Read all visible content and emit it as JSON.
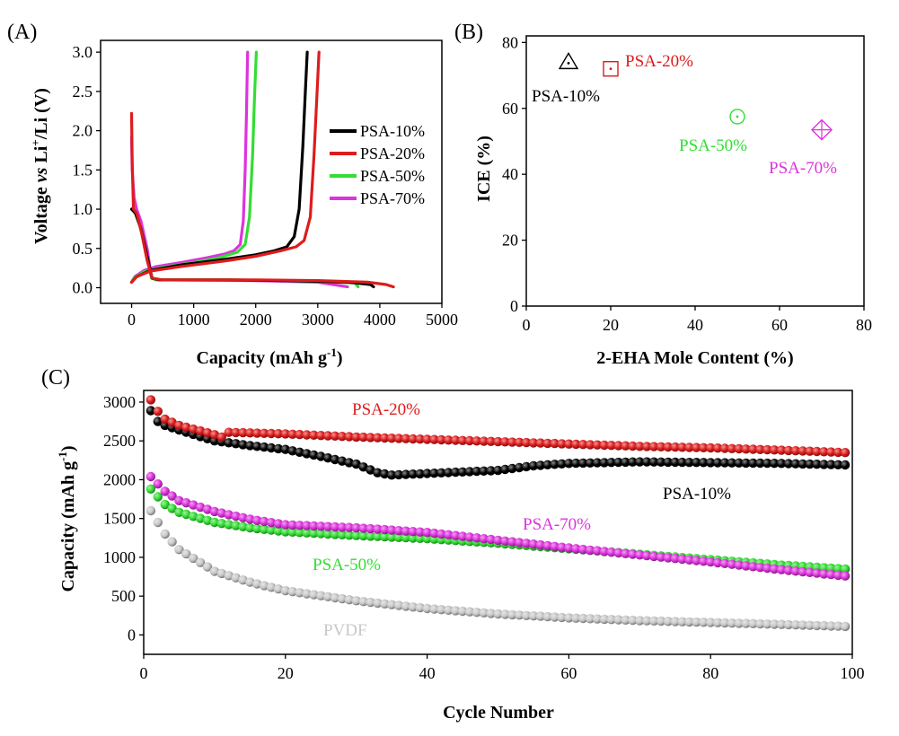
{
  "panels": {
    "a": "(A)",
    "b": "(B)",
    "c": "(C)"
  },
  "colors": {
    "PSA-10%": "#000000",
    "PSA-20%": "#dd1c1c",
    "PSA-50%": "#33dd33",
    "PSA-70%": "#dd33dd",
    "PVDF": "#c8c8c8"
  },
  "chart_data": [
    {
      "id": "A",
      "type": "line",
      "title": "",
      "xlabel": "Capacity (mAh g",
      "xlabel_sup": "-1",
      "xlabel_end": ")",
      "ylabel_parts": [
        "Voltage ",
        "vs",
        " Li",
        "+",
        "/Li (V)"
      ],
      "xlim": [
        -500,
        5000
      ],
      "ylim": [
        -0.2,
        3.15
      ],
      "xticks": [
        0,
        1000,
        2000,
        3000,
        4000,
        5000
      ],
      "yticks": [
        0.0,
        0.5,
        1.0,
        1.5,
        2.0,
        2.5,
        3.0
      ],
      "legend": [
        "PSA-10%",
        "PSA-20%",
        "PSA-50%",
        "PSA-70%"
      ],
      "series": [
        {
          "name": "PSA-70%",
          "discharge": [
            [
              0,
              1.92
            ],
            [
              10,
              1.5
            ],
            [
              40,
              1.15
            ],
            [
              80,
              1.0
            ],
            [
              150,
              0.85
            ],
            [
              250,
              0.5
            ],
            [
              320,
              0.13
            ],
            [
              400,
              0.1
            ],
            [
              1000,
              0.095
            ],
            [
              2000,
              0.09
            ],
            [
              3000,
              0.07
            ],
            [
              3480,
              0.01
            ]
          ],
          "charge": [
            [
              0,
              0.07
            ],
            [
              50,
              0.14
            ],
            [
              200,
              0.22
            ],
            [
              400,
              0.27
            ],
            [
              800,
              0.32
            ],
            [
              1200,
              0.38
            ],
            [
              1500,
              0.43
            ],
            [
              1650,
              0.47
            ],
            [
              1750,
              0.55
            ],
            [
              1800,
              0.85
            ],
            [
              1830,
              1.5
            ],
            [
              1850,
              2.2
            ],
            [
              1870,
              3.0
            ]
          ]
        },
        {
          "name": "PSA-50%",
          "discharge": [
            [
              0,
              1.0
            ],
            [
              60,
              0.95
            ],
            [
              150,
              0.75
            ],
            [
              250,
              0.4
            ],
            [
              320,
              0.12
            ],
            [
              400,
              0.1
            ],
            [
              1500,
              0.1
            ],
            [
              2500,
              0.09
            ],
            [
              3600,
              0.06
            ],
            [
              3650,
              0.01
            ]
          ],
          "charge": [
            [
              0,
              0.07
            ],
            [
              50,
              0.13
            ],
            [
              200,
              0.2
            ],
            [
              500,
              0.26
            ],
            [
              1000,
              0.32
            ],
            [
              1400,
              0.38
            ],
            [
              1700,
              0.45
            ],
            [
              1830,
              0.55
            ],
            [
              1900,
              0.9
            ],
            [
              1950,
              1.7
            ],
            [
              1980,
              2.4
            ],
            [
              2010,
              3.0
            ]
          ]
        },
        {
          "name": "PSA-10%",
          "discharge": [
            [
              0,
              1.0
            ],
            [
              60,
              0.95
            ],
            [
              150,
              0.75
            ],
            [
              250,
              0.4
            ],
            [
              330,
              0.12
            ],
            [
              450,
              0.1
            ],
            [
              1500,
              0.1
            ],
            [
              2500,
              0.09
            ],
            [
              3500,
              0.07
            ],
            [
              3850,
              0.04
            ],
            [
              3900,
              0.01
            ]
          ],
          "charge": [
            [
              0,
              0.07
            ],
            [
              80,
              0.14
            ],
            [
              300,
              0.22
            ],
            [
              800,
              0.29
            ],
            [
              1500,
              0.36
            ],
            [
              2000,
              0.42
            ],
            [
              2300,
              0.47
            ],
            [
              2500,
              0.52
            ],
            [
              2620,
              0.65
            ],
            [
              2700,
              1.0
            ],
            [
              2760,
              1.8
            ],
            [
              2800,
              2.5
            ],
            [
              2830,
              3.0
            ]
          ]
        },
        {
          "name": "PSA-20%",
          "discharge": [
            [
              0,
              2.22
            ],
            [
              10,
              1.6
            ],
            [
              30,
              1.0
            ],
            [
              80,
              0.95
            ],
            [
              160,
              0.7
            ],
            [
              250,
              0.35
            ],
            [
              330,
              0.12
            ],
            [
              500,
              0.1
            ],
            [
              2000,
              0.1
            ],
            [
              3000,
              0.09
            ],
            [
              3800,
              0.07
            ],
            [
              4100,
              0.04
            ],
            [
              4220,
              0.01
            ]
          ],
          "charge": [
            [
              0,
              0.07
            ],
            [
              80,
              0.14
            ],
            [
              300,
              0.21
            ],
            [
              800,
              0.27
            ],
            [
              1500,
              0.34
            ],
            [
              2000,
              0.4
            ],
            [
              2400,
              0.47
            ],
            [
              2650,
              0.52
            ],
            [
              2780,
              0.6
            ],
            [
              2880,
              0.9
            ],
            [
              2940,
              1.7
            ],
            [
              2990,
              2.5
            ],
            [
              3020,
              3.0
            ]
          ]
        }
      ]
    },
    {
      "id": "B",
      "type": "scatter",
      "title": "",
      "xlabel": "2-EHA Mole Content (%)",
      "ylabel": "ICE (%)",
      "xlim": [
        0,
        80
      ],
      "ylim": [
        0,
        82
      ],
      "xticks": [
        0,
        20,
        40,
        60,
        80
      ],
      "yticks": [
        0,
        20,
        40,
        60,
        80
      ],
      "points": [
        {
          "name": "PSA-10%",
          "x": 10,
          "y": 74,
          "marker": "triangle-dot"
        },
        {
          "name": "PSA-20%",
          "x": 20,
          "y": 72,
          "marker": "square-dot"
        },
        {
          "name": "PSA-50%",
          "x": 50,
          "y": 57.5,
          "marker": "circle-dot"
        },
        {
          "name": "PSA-70%",
          "x": 70,
          "y": 53.5,
          "marker": "diamond-plus"
        }
      ]
    },
    {
      "id": "C",
      "type": "scatter",
      "title": "",
      "xlabel": "Cycle Number",
      "ylabel": "Capacity (mAh g",
      "ylabel_sup": "-1",
      "ylabel_end": ")",
      "xlim": [
        0,
        100
      ],
      "ylim": [
        -250,
        3150
      ],
      "xticks": [
        0,
        20,
        40,
        60,
        80,
        100
      ],
      "yticks": [
        0,
        500,
        1000,
        1500,
        2000,
        2500,
        3000
      ],
      "n_cycles": 99,
      "series": [
        {
          "name": "PVDF",
          "anchors": [
            [
              1,
              1600
            ],
            [
              3,
              1300
            ],
            [
              5,
              1100
            ],
            [
              10,
              820
            ],
            [
              15,
              680
            ],
            [
              20,
              570
            ],
            [
              30,
              440
            ],
            [
              40,
              340
            ],
            [
              50,
              270
            ],
            [
              60,
              220
            ],
            [
              70,
              185
            ],
            [
              80,
              160
            ],
            [
              90,
              135
            ],
            [
              99,
              110
            ]
          ]
        },
        {
          "name": "PSA-50%",
          "anchors": [
            [
              1,
              1880
            ],
            [
              3,
              1680
            ],
            [
              5,
              1580
            ],
            [
              10,
              1450
            ],
            [
              15,
              1380
            ],
            [
              20,
              1330
            ],
            [
              30,
              1280
            ],
            [
              40,
              1240
            ],
            [
              50,
              1180
            ],
            [
              60,
              1110
            ],
            [
              70,
              1040
            ],
            [
              80,
              970
            ],
            [
              90,
              900
            ],
            [
              99,
              850
            ]
          ]
        },
        {
          "name": "PSA-70%",
          "anchors": [
            [
              1,
              2040
            ],
            [
              3,
              1850
            ],
            [
              5,
              1730
            ],
            [
              10,
              1590
            ],
            [
              15,
              1490
            ],
            [
              20,
              1420
            ],
            [
              30,
              1380
            ],
            [
              40,
              1320
            ],
            [
              50,
              1220
            ],
            [
              60,
              1120
            ],
            [
              70,
              1030
            ],
            [
              80,
              940
            ],
            [
              90,
              840
            ],
            [
              99,
              760
            ]
          ]
        },
        {
          "name": "PSA-10%",
          "anchors": [
            [
              1,
              2890
            ],
            [
              2,
              2750
            ],
            [
              3,
              2700
            ],
            [
              5,
              2640
            ],
            [
              10,
              2500
            ],
            [
              15,
              2440
            ],
            [
              20,
              2390
            ],
            [
              25,
              2300
            ],
            [
              30,
              2200
            ],
            [
              33,
              2090
            ],
            [
              35,
              2060
            ],
            [
              40,
              2080
            ],
            [
              45,
              2100
            ],
            [
              50,
              2120
            ],
            [
              55,
              2180
            ],
            [
              60,
              2210
            ],
            [
              70,
              2230
            ],
            [
              80,
              2220
            ],
            [
              90,
              2210
            ],
            [
              99,
              2190
            ]
          ]
        },
        {
          "name": "PSA-20%",
          "anchors": [
            [
              1,
              3030
            ],
            [
              2,
              2880
            ],
            [
              3,
              2780
            ],
            [
              5,
              2700
            ],
            [
              10,
              2580
            ],
            [
              11,
              2550
            ],
            [
              12,
              2610
            ],
            [
              20,
              2590
            ],
            [
              30,
              2550
            ],
            [
              40,
              2520
            ],
            [
              50,
              2490
            ],
            [
              60,
              2460
            ],
            [
              70,
              2430
            ],
            [
              80,
              2410
            ],
            [
              90,
              2380
            ],
            [
              99,
              2350
            ]
          ]
        }
      ],
      "annotations": [
        "PSA-20%",
        "PSA-10%",
        "PSA-70%",
        "PSA-50%",
        "PVDF"
      ]
    }
  ]
}
